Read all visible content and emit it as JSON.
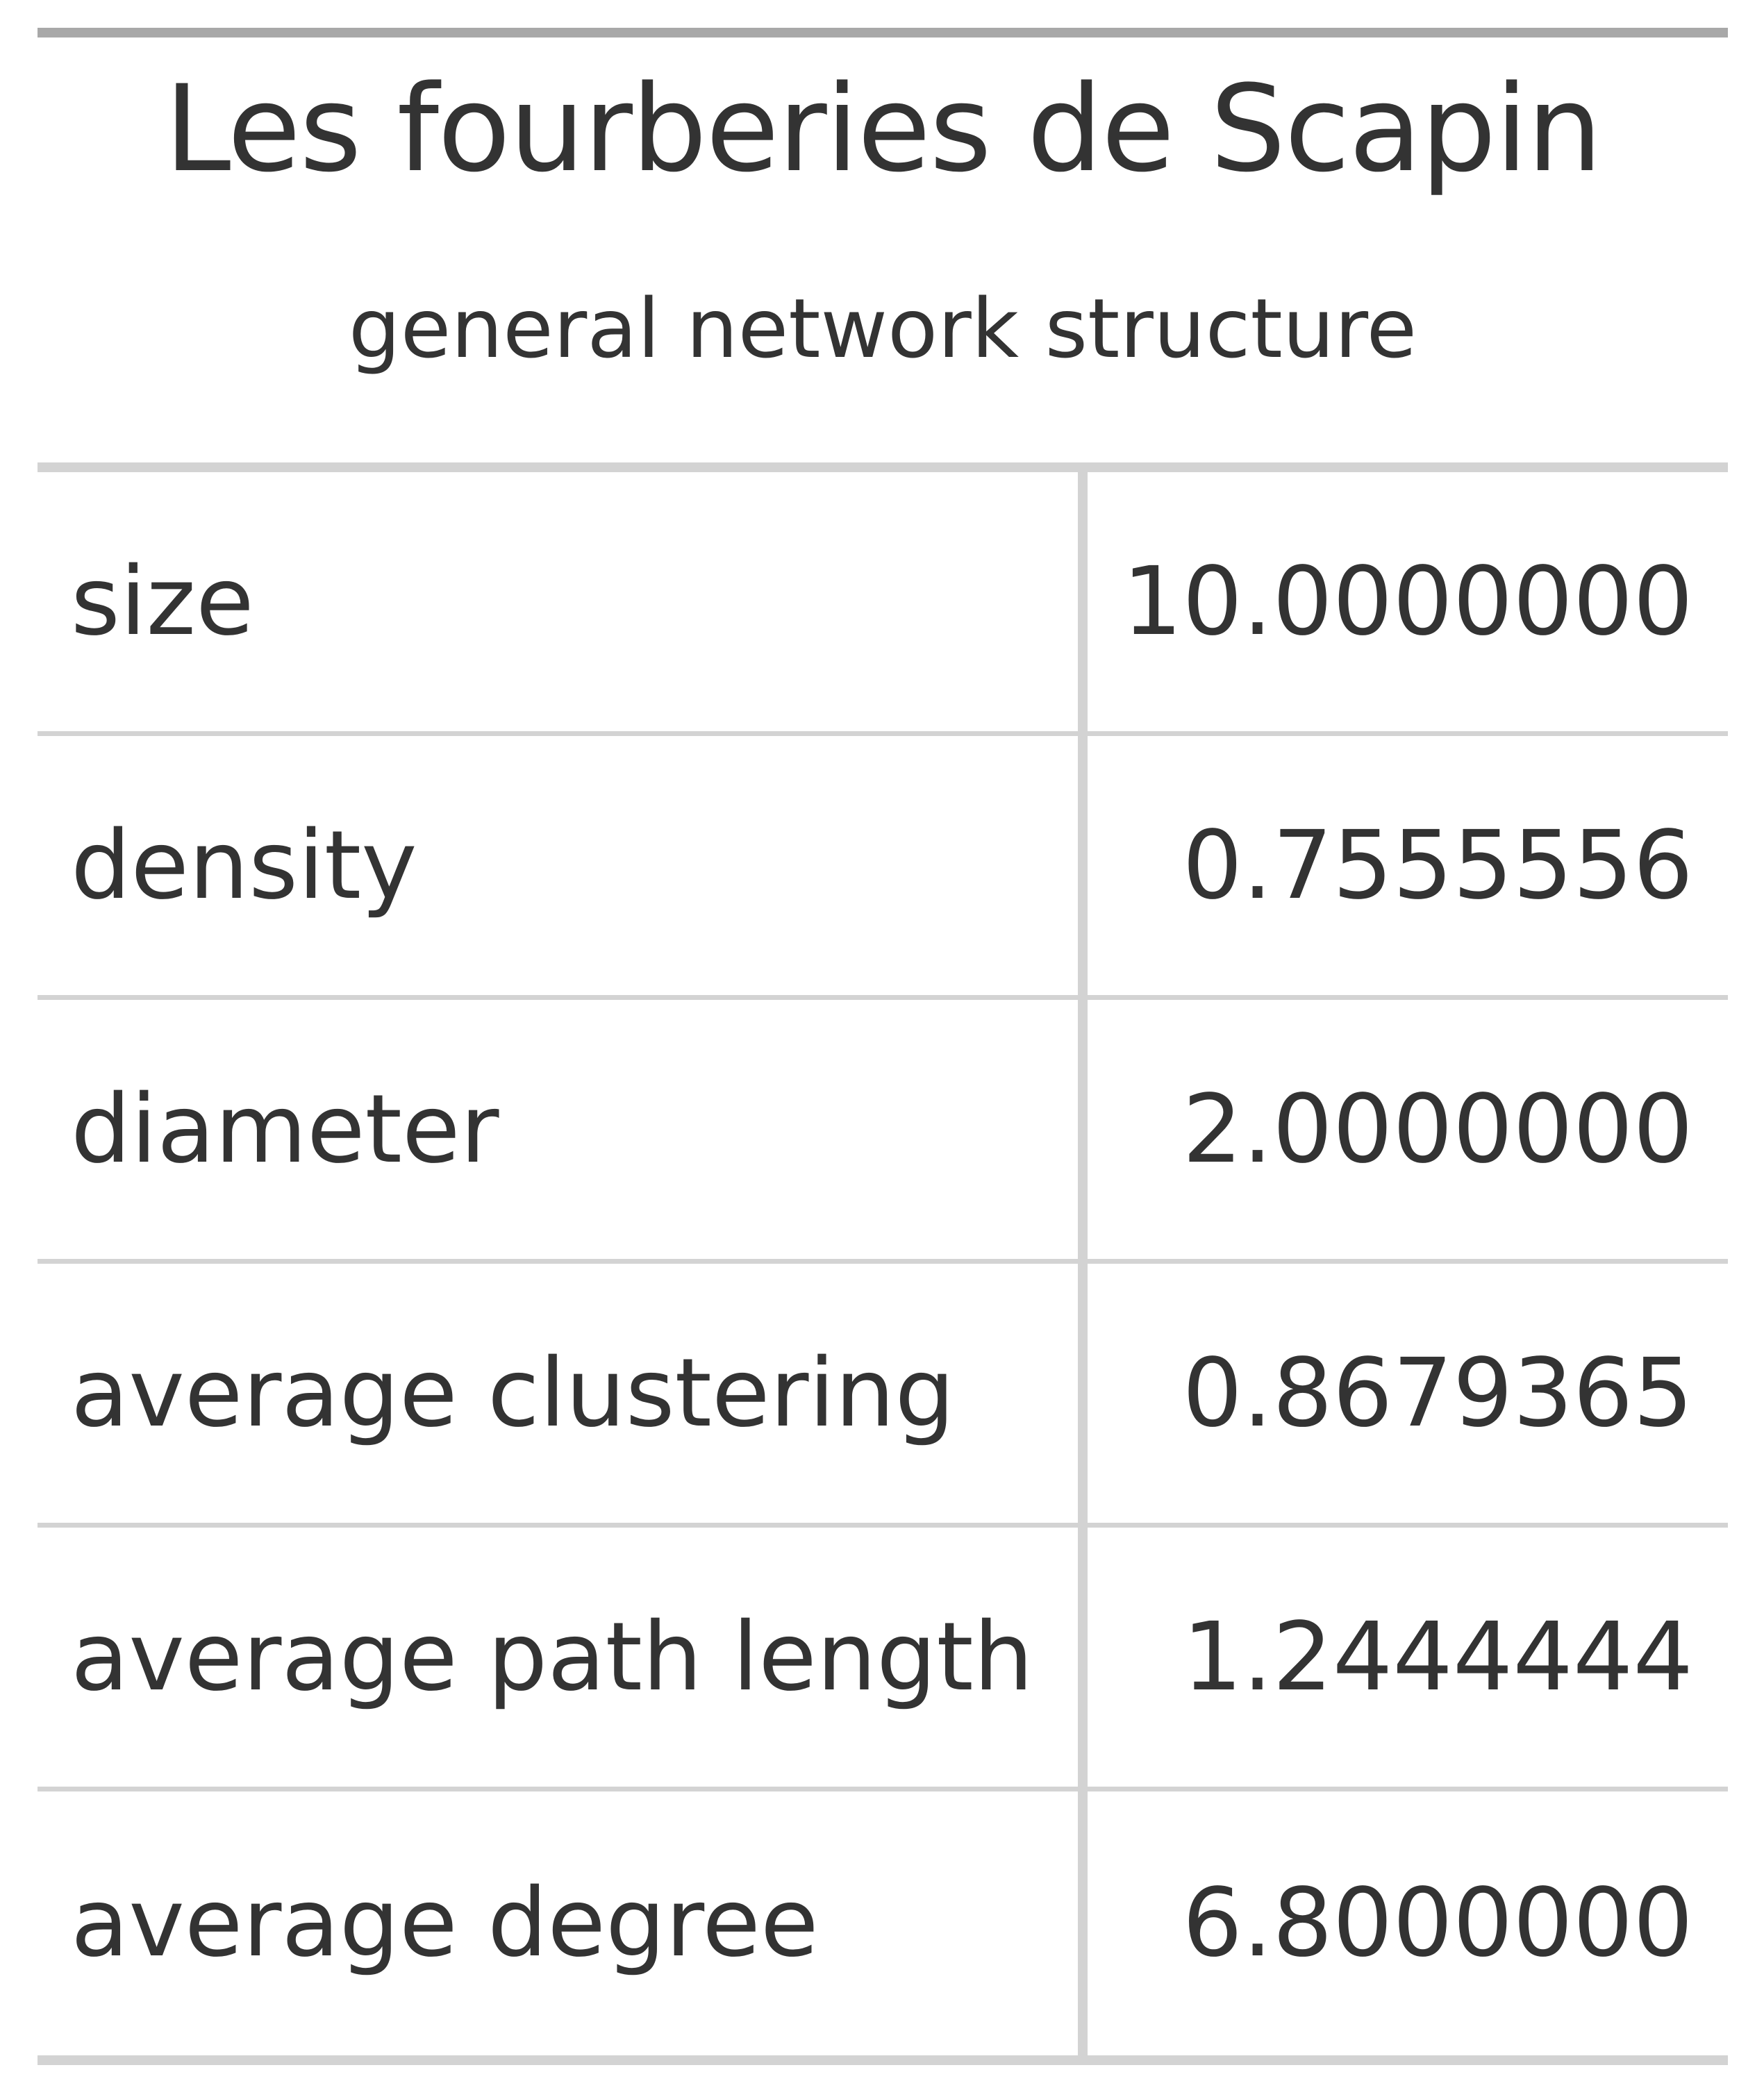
{
  "table": {
    "title": "Les fourberies de Scapin",
    "subtitle": "general network structure",
    "rows": [
      {
        "label": "size",
        "value": "10.0000000"
      },
      {
        "label": "density",
        "value": "0.7555556"
      },
      {
        "label": "diameter",
        "value": "2.0000000"
      },
      {
        "label": "average clustering",
        "value": "0.8679365"
      },
      {
        "label": "average path length",
        "value": "1.2444444"
      },
      {
        "label": "average degree",
        "value": "6.8000000"
      }
    ]
  },
  "colors": {
    "text": "#333333",
    "top_rule": "#a8a8a8",
    "grid": "#d3d3d3",
    "background": "#ffffff"
  }
}
